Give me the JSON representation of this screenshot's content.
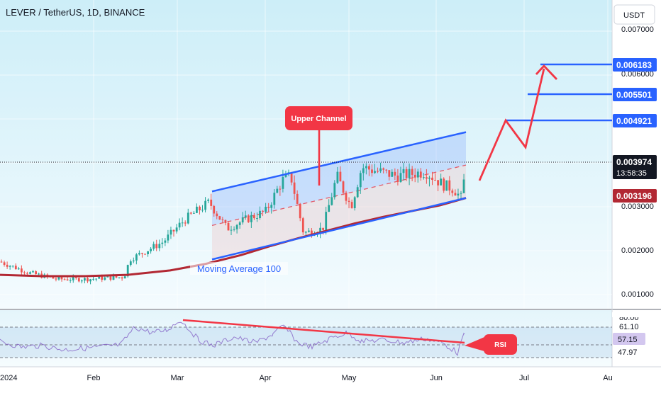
{
  "title": "LEVER / TetherUS, 1D, BINANCE",
  "currency_button": "USDT",
  "price_axis": {
    "ticks": [
      "0.007000",
      "0.006000",
      "0.003000",
      "0.002000",
      "0.001000"
    ],
    "highlighted": [
      {
        "label": "0.006183",
        "value": 0.006183,
        "color": "#2962ff"
      },
      {
        "label": "0.005501",
        "value": 0.005501,
        "color": "#2962ff"
      },
      {
        "label": "0.004921",
        "value": 0.004921,
        "color": "#2962ff"
      },
      {
        "label": "0.003974",
        "value": 0.003974,
        "color": "#131722"
      },
      {
        "label": "0.003196",
        "value": 0.003196,
        "color": "#b22833"
      }
    ],
    "countdown": "13:58:35"
  },
  "rsi_axis": {
    "ticks": [
      "61.10",
      "57.15",
      "47.97"
    ],
    "partial_top_label": "80.00"
  },
  "time_axis": [
    "2024",
    "Feb",
    "Mar",
    "Apr",
    "May",
    "Jun",
    "Jul",
    "Au"
  ],
  "annotations": {
    "upper_channel": "Upper Channel",
    "moving_average": "Moving Average 100",
    "rsi": "RSI"
  },
  "colors": {
    "up": "#26a69a",
    "down": "#ef5350",
    "channel": "#2962ff",
    "ma": "#b22833",
    "arrow": "#f23645",
    "bg_top": "#cdeef8",
    "bg_bottom": "#f4fbfe"
  },
  "chart_data": [
    {
      "type": "candlestick",
      "title": "LEVER / TetherUS, 1D, BINANCE",
      "y_unit": "USDT",
      "yrange": [
        0.0004,
        0.0075
      ],
      "x_ticks": [
        "2024",
        "Feb",
        "Mar",
        "Apr",
        "May",
        "Jun",
        "Jul",
        "Au"
      ],
      "series": [
        {
          "name": "Moving Average 100",
          "type": "line",
          "start_value": 0.00145,
          "end_value": 0.003196
        },
        {
          "name": "Upper Channel",
          "type": "line",
          "start_value": 0.00335,
          "end_value": 0.0047
        },
        {
          "name": "Lower Channel",
          "type": "line",
          "start_value": 0.0018,
          "end_value": 0.0032
        }
      ],
      "last_price": 0.003974,
      "target_levels": [
        0.004921,
        0.005501,
        0.006183
      ]
    },
    {
      "type": "line",
      "title": "RSI",
      "yrange": [
        38,
        82
      ],
      "y_ticks": [
        61.1,
        57.15,
        47.97
      ],
      "last_value": 57.15
    }
  ]
}
